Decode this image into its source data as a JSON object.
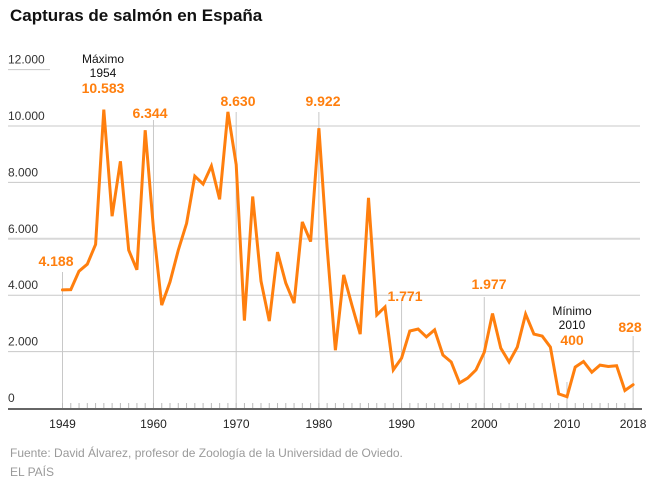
{
  "chart_data": {
    "type": "line",
    "title": "Capturas de salmón en España",
    "xlabel": "",
    "ylabel": "",
    "ylim": [
      0,
      12000
    ],
    "xlim": [
      1949,
      2018
    ],
    "grid": true,
    "y_ticks": [
      {
        "value": 0,
        "label": "0"
      },
      {
        "value": 2000,
        "label": "2.000"
      },
      {
        "value": 4000,
        "label": "4.000"
      },
      {
        "value": 6000,
        "label": "6.000"
      },
      {
        "value": 8000,
        "label": "8.000"
      },
      {
        "value": 10000,
        "label": "10.000"
      },
      {
        "value": 12000,
        "label": "12.000"
      }
    ],
    "x_ticks": [
      {
        "value": 1949,
        "label": "1949"
      },
      {
        "value": 1960,
        "label": "1960"
      },
      {
        "value": 1970,
        "label": "1970"
      },
      {
        "value": 1980,
        "label": "1980"
      },
      {
        "value": 1990,
        "label": "1990"
      },
      {
        "value": 2000,
        "label": "2000"
      },
      {
        "value": 2010,
        "label": "2010"
      },
      {
        "value": 2018,
        "label": "2018"
      }
    ],
    "series": [
      {
        "name": "Capturas",
        "color": "#ff7f0e",
        "x": [
          1949,
          1950,
          1951,
          1952,
          1953,
          1954,
          1955,
          1956,
          1957,
          1958,
          1959,
          1960,
          1961,
          1962,
          1963,
          1964,
          1965,
          1966,
          1967,
          1968,
          1969,
          1970,
          1971,
          1972,
          1973,
          1974,
          1975,
          1976,
          1977,
          1978,
          1979,
          1980,
          1981,
          1982,
          1983,
          1984,
          1985,
          1986,
          1987,
          1988,
          1989,
          1990,
          1991,
          1992,
          1993,
          1994,
          1995,
          1996,
          1997,
          1998,
          1999,
          2000,
          2001,
          2002,
          2003,
          2004,
          2005,
          2006,
          2007,
          2008,
          2009,
          2010,
          2011,
          2012,
          2013,
          2014,
          2015,
          2016,
          2017,
          2018
        ],
        "values": [
          4188,
          4200,
          4850,
          5100,
          5800,
          10583,
          6800,
          8750,
          5600,
          4900,
          9850,
          6344,
          3650,
          4470,
          5600,
          6550,
          8220,
          7940,
          8580,
          7400,
          10500,
          8630,
          3100,
          7500,
          4500,
          3080,
          5530,
          4430,
          3720,
          6600,
          5900,
          9922,
          5700,
          2050,
          4720,
          3650,
          2620,
          7450,
          3300,
          3580,
          1350,
          1771,
          2730,
          2800,
          2520,
          2770,
          1880,
          1630,
          890,
          1060,
          1350,
          1977,
          3350,
          2120,
          1630,
          2160,
          3330,
          2620,
          2550,
          2160,
          500,
          400,
          1450,
          1650,
          1270,
          1520,
          1470,
          1500,
          620,
          828
        ]
      }
    ],
    "annotations": [
      {
        "year": 1949,
        "value_label": "4.188",
        "note": ""
      },
      {
        "year": 1954,
        "value_label": "10.583",
        "note": "Máximo\n1954",
        "note_line1": "Máximo",
        "note_line2": "1954"
      },
      {
        "year": 1960,
        "value_label": "6.344",
        "note": ""
      },
      {
        "year": 1970,
        "value_label": "8.630",
        "note": ""
      },
      {
        "year": 1980,
        "value_label": "9.922",
        "note": ""
      },
      {
        "year": 1990,
        "value_label": "1.771",
        "note": ""
      },
      {
        "year": 2000,
        "value_label": "1.977",
        "note": ""
      },
      {
        "year": 2010,
        "value_label": "400",
        "note": "Mínimo\n2010",
        "note_line1": "Mínimo",
        "note_line2": "2010"
      },
      {
        "year": 2018,
        "value_label": "828",
        "note": ""
      }
    ]
  },
  "colors": {
    "line": "#ff7f0e",
    "annotation": "#ff7f0e",
    "grid": "#c8c8c8",
    "axis": "#666666",
    "text": "#333333",
    "muted": "#9a9a9a"
  },
  "footer": {
    "source": "Fuente: David Álvarez, profesor de Zoología de la Universidad de Oviedo.",
    "brand": "EL PAÍS"
  }
}
